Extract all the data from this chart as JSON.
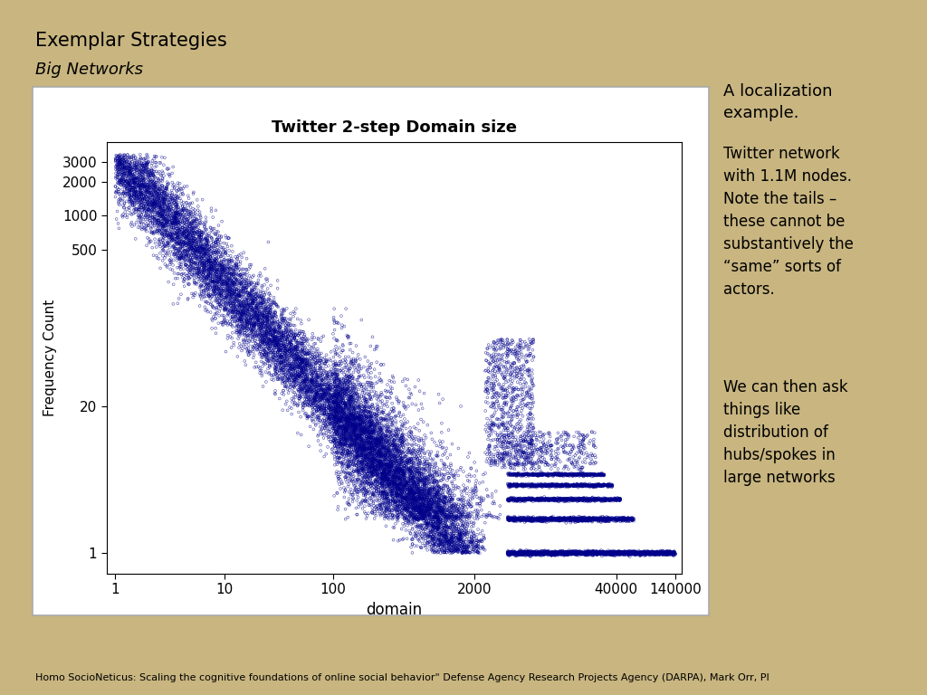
{
  "title": "Twitter 2-step Domain size",
  "xlabel": "domain",
  "ylabel": "Frequency Count",
  "slide_title": "Exemplar Strategies",
  "slide_subtitle": "Big Networks",
  "right_text_1": "A localization\nexample.",
  "right_text_2": "Twitter network\nwith 1.1M nodes.\nNote the tails –\nthese cannot be\nsubstantively the\n“same” sorts of\nactors.",
  "right_text_3": "We can then ask\nthings like\ndistribution of\nhubs/spokes in\nlarge networks",
  "footer_text": "Homo SocioNeticus: Scaling the cognitive foundations of online social behavior\" Defense Agency Research Projects Agency (DARPA), Mark Orr, PI",
  "background_color": "#C8B580",
  "plot_panel_color": "#FFFFFF",
  "scatter_color": "#00008B",
  "yticks": [
    1,
    20,
    500,
    1000,
    2000,
    3000
  ],
  "ytick_labels": [
    "1",
    "20",
    "500",
    "1000",
    "2000",
    "3000"
  ],
  "xticks": [
    1,
    10,
    100,
    2000,
    40000,
    140000
  ],
  "xtick_labels": [
    "1",
    "10",
    "100",
    "2000",
    "40000",
    "140000"
  ],
  "xlim_log": [
    -0.08,
    5.2
  ],
  "ylim_log": [
    -0.18,
    3.65
  ],
  "seed": 42
}
